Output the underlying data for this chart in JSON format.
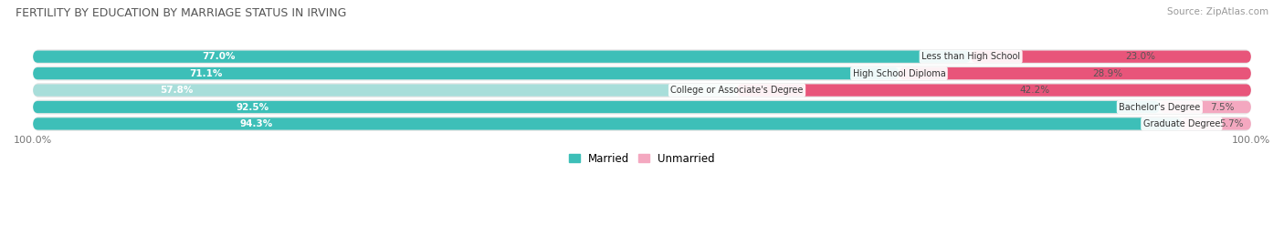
{
  "title": "FERTILITY BY EDUCATION BY MARRIAGE STATUS IN IRVING",
  "source": "Source: ZipAtlas.com",
  "categories": [
    "Less than High School",
    "High School Diploma",
    "College or Associate's Degree",
    "Bachelor's Degree",
    "Graduate Degree"
  ],
  "married": [
    77.0,
    71.1,
    57.8,
    92.5,
    94.3
  ],
  "unmarried": [
    23.0,
    28.9,
    42.2,
    7.5,
    5.7
  ],
  "married_color_strong": "#3dbfb8",
  "married_color_light": "#a8deda",
  "unmarried_color_strong": "#e8557a",
  "unmarried_color_light": "#f4a8c0",
  "row_bg_color": "#ebebeb",
  "row_bg_light": "#f5f5f5",
  "title_color": "#555555",
  "figsize": [
    14.06,
    2.69
  ],
  "dpi": 100
}
